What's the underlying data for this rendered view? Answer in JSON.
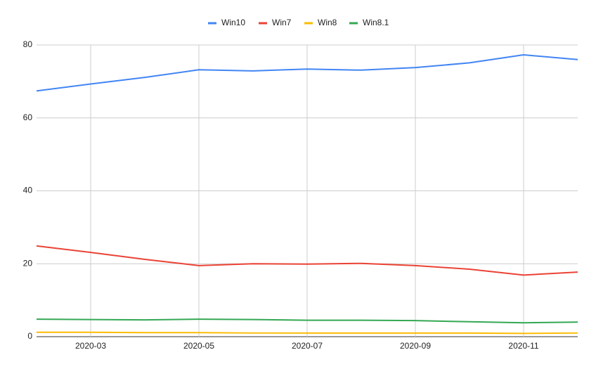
{
  "chart_data": {
    "type": "line",
    "categories": [
      null,
      "2020-03",
      null,
      "2020-05",
      null,
      "2020-07",
      null,
      "2020-09",
      null,
      "2020-11",
      null
    ],
    "series": [
      {
        "name": "Win10",
        "color": "#4285f4",
        "values": [
          67.4,
          69.3,
          71.1,
          73.2,
          72.9,
          73.4,
          73.1,
          73.8,
          75.1,
          77.3,
          76.0
        ]
      },
      {
        "name": "Win7",
        "color": "#ea4335",
        "values": [
          24.9,
          23.1,
          21.2,
          19.5,
          20.0,
          19.9,
          20.1,
          19.5,
          18.5,
          16.9,
          17.7
        ]
      },
      {
        "name": "Win8",
        "color": "#fbbc04",
        "values": [
          1.2,
          1.2,
          1.1,
          1.1,
          1.0,
          1.0,
          1.0,
          1.0,
          1.0,
          0.9,
          1.0
        ]
      },
      {
        "name": "Win8.1",
        "color": "#34a853",
        "values": [
          4.8,
          4.7,
          4.6,
          4.8,
          4.7,
          4.5,
          4.5,
          4.4,
          4.1,
          3.8,
          4.0
        ]
      }
    ],
    "ylim": [
      0,
      80
    ],
    "yticks": [
      0,
      20,
      40,
      60,
      80
    ],
    "grid": true,
    "legend": "top"
  }
}
